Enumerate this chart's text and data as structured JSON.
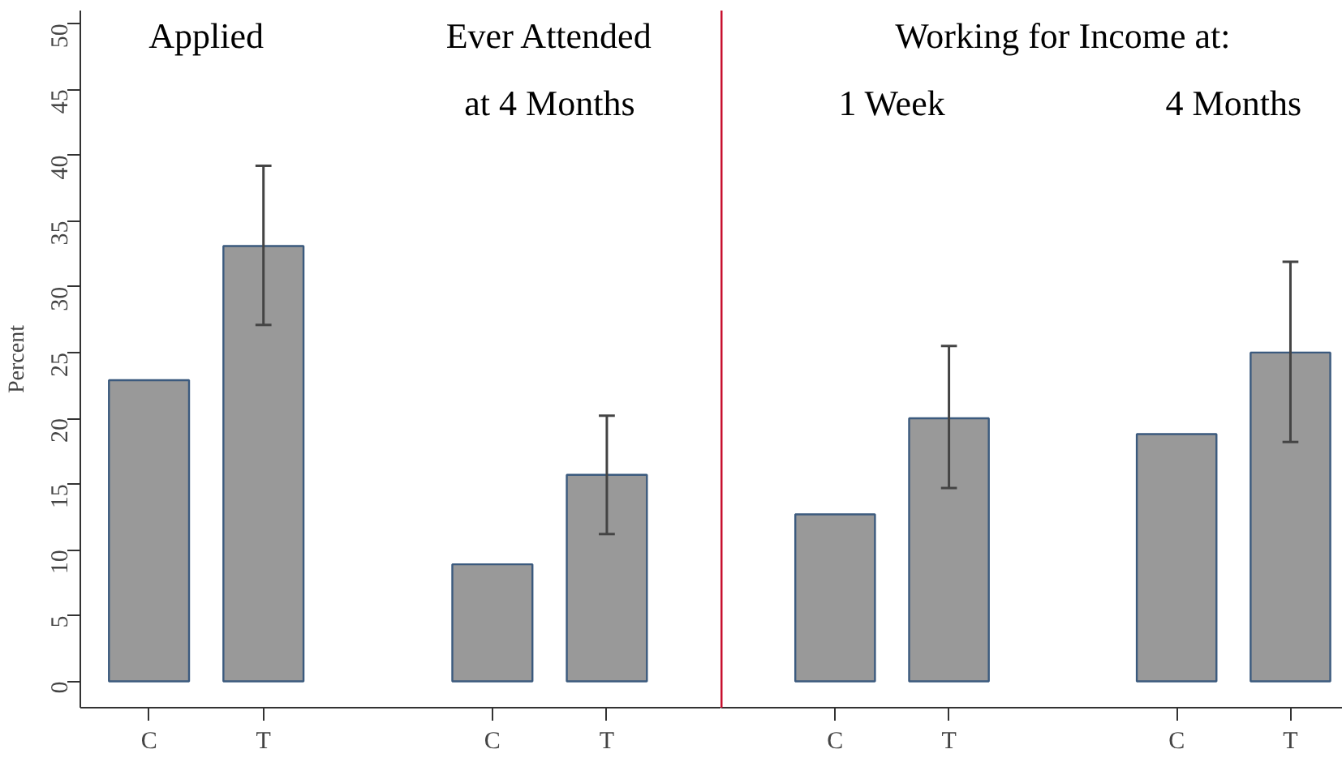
{
  "chart_data": [
    {
      "type": "bar",
      "ylabel": "Percent",
      "categories": [
        "C",
        "T",
        "C",
        "T"
      ],
      "values": [
        22.9,
        33.1,
        8.9,
        15.7
      ],
      "errors": [
        null,
        [
          27.1,
          39.2
        ],
        null,
        [
          11.2,
          20.2
        ]
      ],
      "color": "#999999",
      "ylim": [
        -2,
        51
      ],
      "yticks": [
        0,
        5,
        10,
        15,
        20,
        25,
        30,
        35,
        40,
        45,
        50
      ],
      "annotations": [
        "Applied",
        "Ever Attended\nat 4 Months"
      ],
      "grid": false
    },
    {
      "type": "bar",
      "categories": [
        "C",
        "T",
        "C",
        "T"
      ],
      "values": [
        12.7,
        20.0,
        18.8,
        25.0
      ],
      "errors": [
        null,
        [
          14.7,
          25.5
        ],
        null,
        [
          18.2,
          31.9
        ]
      ],
      "color": "#999999",
      "ylim": [
        -2,
        51
      ],
      "yticks": [
        0,
        5,
        10,
        15,
        20,
        25,
        30,
        35,
        40,
        45,
        50
      ],
      "tick_labels": "x",
      "annotations": [
        "Working for Income at:",
        "1 Week",
        "4 Months"
      ],
      "grid": false
    }
  ]
}
